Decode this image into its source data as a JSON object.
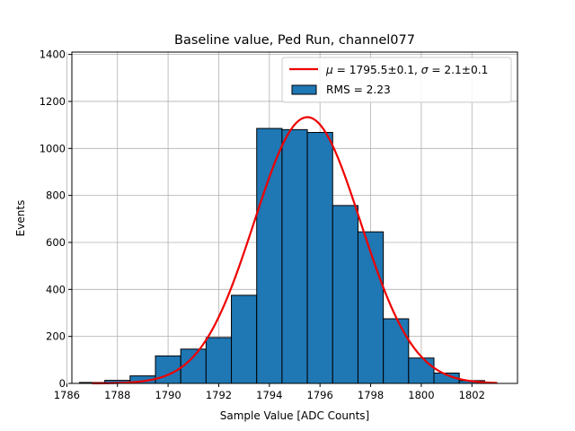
{
  "chart_data": {
    "type": "bar",
    "title": "Baseline value, Ped Run, channel077",
    "xlabel": "Sample Value [ADC Counts]",
    "ylabel": "Events",
    "xlim": [
      1786.2,
      1803.8
    ],
    "ylim": [
      0,
      1410
    ],
    "xticks": [
      1786,
      1788,
      1790,
      1792,
      1794,
      1796,
      1798,
      1800,
      1802
    ],
    "yticks": [
      0,
      200,
      400,
      600,
      800,
      1000,
      1200,
      1400
    ],
    "grid": true,
    "legend_position": "top-right",
    "histogram": {
      "name": "RMS = 2.23",
      "color": "#1f77b4",
      "edgecolor": "#000000",
      "bin_edges": [
        1786.5,
        1787.5,
        1788.5,
        1789.5,
        1790.5,
        1791.5,
        1792.5,
        1793.5,
        1794.5,
        1795.5,
        1796.5,
        1797.5,
        1798.5,
        1799.5,
        1800.5,
        1801.5,
        1802.5
      ],
      "counts": [
        4,
        13,
        32,
        117,
        146,
        195,
        375,
        1085,
        1080,
        1068,
        757,
        645,
        275,
        108,
        44,
        12
      ]
    },
    "fit": {
      "name_mu_label": "μ",
      "name_mu_text": " = 1795.5±0.1, ",
      "name_sigma_label": "σ",
      "name_sigma_text": " = 2.1±0.1",
      "color": "#ee0000",
      "mu": 1795.5,
      "sigma": 2.1,
      "amplitude": 1133,
      "x_range": [
        1787.0,
        1803.0
      ]
    }
  }
}
